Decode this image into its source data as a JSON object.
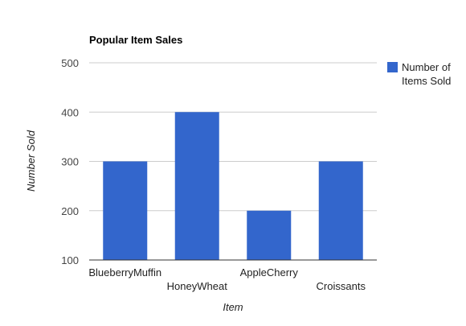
{
  "chart_data": {
    "type": "bar",
    "title": "Popular Item Sales",
    "xlabel": "Item",
    "ylabel": "Number Sold",
    "categories": [
      "BlueberryMuffin",
      "HoneyWheat",
      "AppleCherry",
      "Croissants"
    ],
    "series": [
      {
        "name": "Number of Items Sold",
        "values": [
          300,
          400,
          200,
          300
        ]
      }
    ],
    "ylim": [
      100,
      500
    ],
    "yticks": [
      100,
      200,
      300,
      400,
      500
    ],
    "grid": true,
    "legend_position": "right",
    "colors": {
      "bar": "#3366cc",
      "grid": "#cccccc",
      "axis": "#333333"
    }
  }
}
